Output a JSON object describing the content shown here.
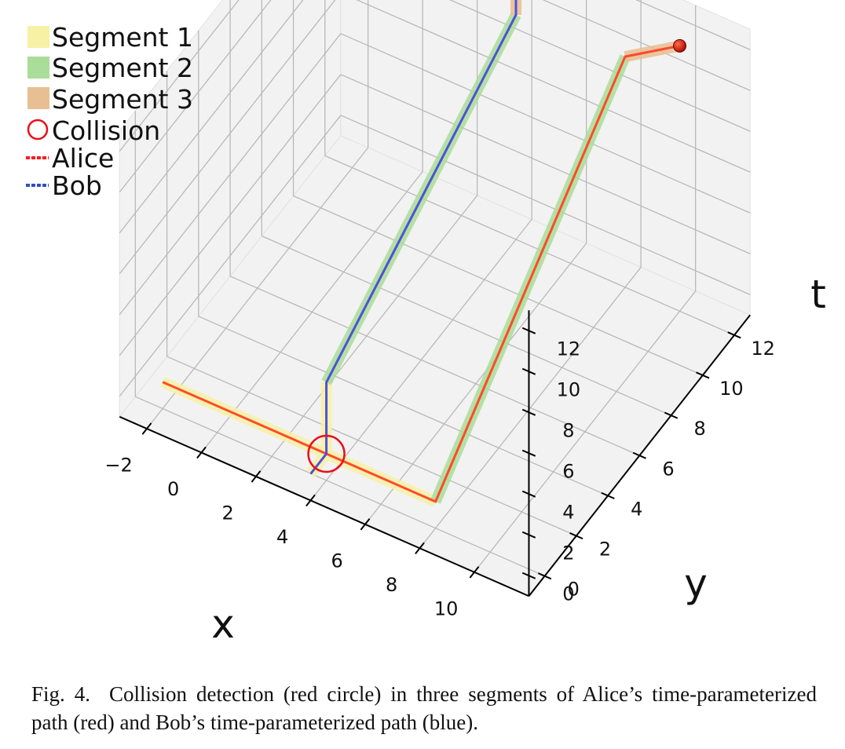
{
  "chart_data": {
    "type": "line3d",
    "xlabel": "x",
    "ylabel": "y",
    "zlabel": "t",
    "xlim": [
      -3,
      12
    ],
    "ylim": [
      -1,
      13
    ],
    "zlim": [
      -1,
      13
    ],
    "x_ticks": [
      -2,
      0,
      2,
      4,
      6,
      8,
      10
    ],
    "y_ticks": [
      0,
      2,
      4,
      6,
      8,
      10,
      12
    ],
    "z_ticks": [
      0,
      2,
      4,
      6,
      8,
      10,
      12
    ],
    "x_tick_labels": [
      "−2",
      "0",
      "2",
      "4",
      "6",
      "8",
      "10"
    ],
    "y_tick_labels": [
      "0",
      "2",
      "4",
      "6",
      "8",
      "10",
      "12"
    ],
    "z_tick_labels": [
      "0",
      "2",
      "4",
      "6",
      "8",
      "10",
      "12"
    ],
    "grid": true,
    "legend_placement": "top-left",
    "segments": [
      {
        "name": "Segment 1",
        "color": "#f7f1a6"
      },
      {
        "name": "Segment 2",
        "color": "#aadd99"
      },
      {
        "name": "Segment 3",
        "color": "#e8bf92"
      }
    ],
    "series": [
      {
        "name": "Alice",
        "color": "#ff4a2a",
        "legend_color": "#ff1a1a",
        "points": [
          [
            -2,
            0,
            0.3
          ],
          [
            4,
            0,
            0.3
          ],
          [
            8,
            0,
            0.3
          ],
          [
            8,
            12,
            10.3
          ],
          [
            10,
            12,
            12
          ]
        ],
        "segment_of_edge": [
          0,
          0,
          1,
          2
        ]
      },
      {
        "name": "Bob",
        "color": "#5050d8",
        "legend_color": "#3050c0",
        "points": [
          [
            4,
            -1,
            0.3
          ],
          [
            4,
            0,
            0.3
          ],
          [
            4,
            0,
            3.8
          ],
          [
            4,
            12,
            10
          ],
          [
            4,
            12,
            13
          ]
        ],
        "segment_of_edge": [
          0,
          0,
          1,
          2
        ]
      }
    ],
    "collision": {
      "name": "Collision",
      "color": "#e8101a",
      "point": [
        4,
        0,
        0.3
      ]
    },
    "end_marker": {
      "color": "#b01000",
      "point": [
        10,
        12,
        12
      ]
    }
  },
  "caption": {
    "number": "Fig. 4.",
    "text": "Collision detection (red circle) in three segments of Alice’s time-parameterized path (red) and Bob’s time-parameterized path (blue)."
  }
}
